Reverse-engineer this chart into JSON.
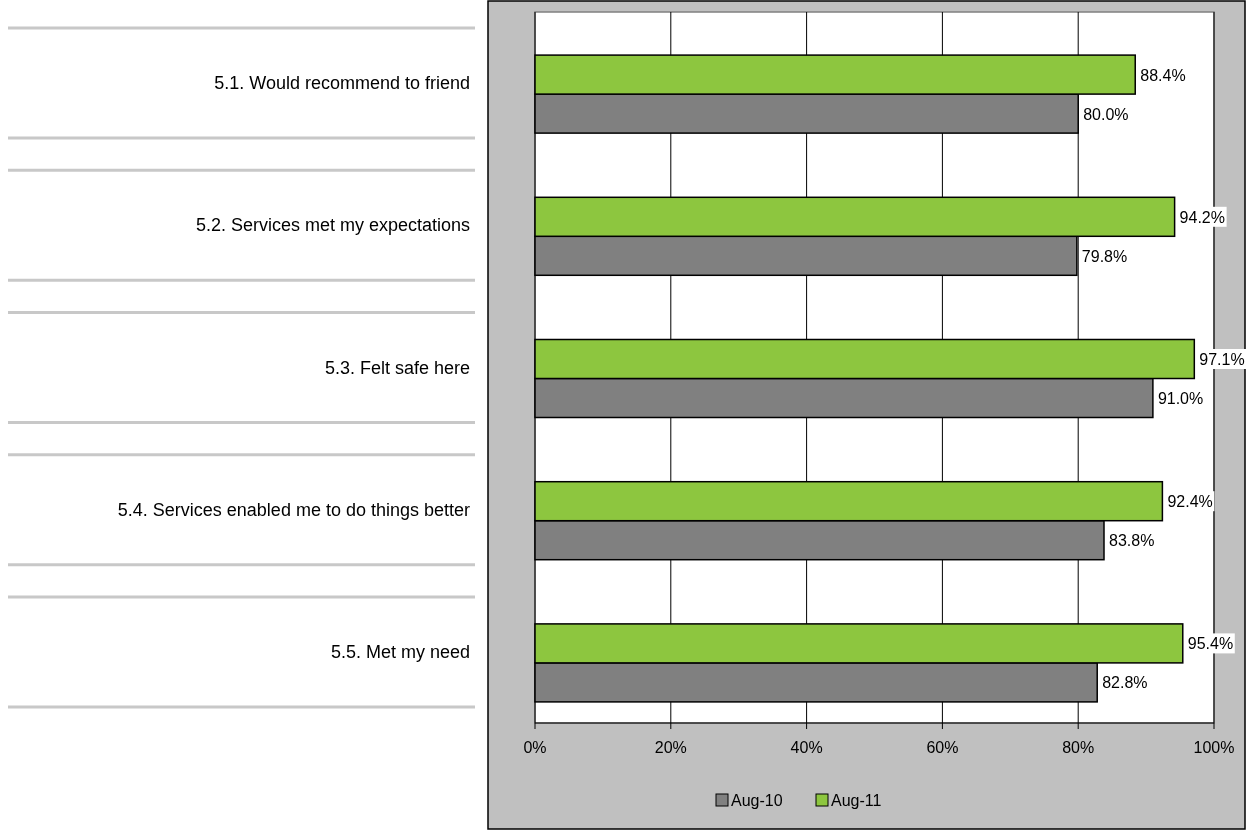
{
  "chart_data": {
    "type": "bar",
    "orientation": "horizontal",
    "categories": [
      "5.1. Would recommend to friend",
      "5.2. Services met my expectations",
      "5.3. Felt safe here",
      "5.4. Services enabled me to do things better",
      "5.5. Met my need"
    ],
    "series": [
      {
        "name": "Aug-10",
        "color": "#808080",
        "values": [
          80.0,
          79.8,
          91.0,
          83.8,
          82.8
        ]
      },
      {
        "name": "Aug-11",
        "color": "#8dc63f",
        "values": [
          88.4,
          94.2,
          97.1,
          92.4,
          95.4
        ]
      }
    ],
    "xlim": [
      0,
      100
    ],
    "xticks": [
      {
        "value": 0,
        "label": "0%"
      },
      {
        "value": 20,
        "label": "20%"
      },
      {
        "value": 40,
        "label": "40%"
      },
      {
        "value": 60,
        "label": "60%"
      },
      {
        "value": 80,
        "label": "80%"
      },
      {
        "value": 100,
        "label": "100%"
      }
    ],
    "value_labels": [
      [
        "80.0%",
        "79.8%",
        "91.0%",
        "83.8%",
        "82.8%"
      ],
      [
        "88.4%",
        "94.2%",
        "97.1%",
        "92.4%",
        "95.4%"
      ]
    ],
    "grid": "x",
    "legend": "bottom"
  }
}
